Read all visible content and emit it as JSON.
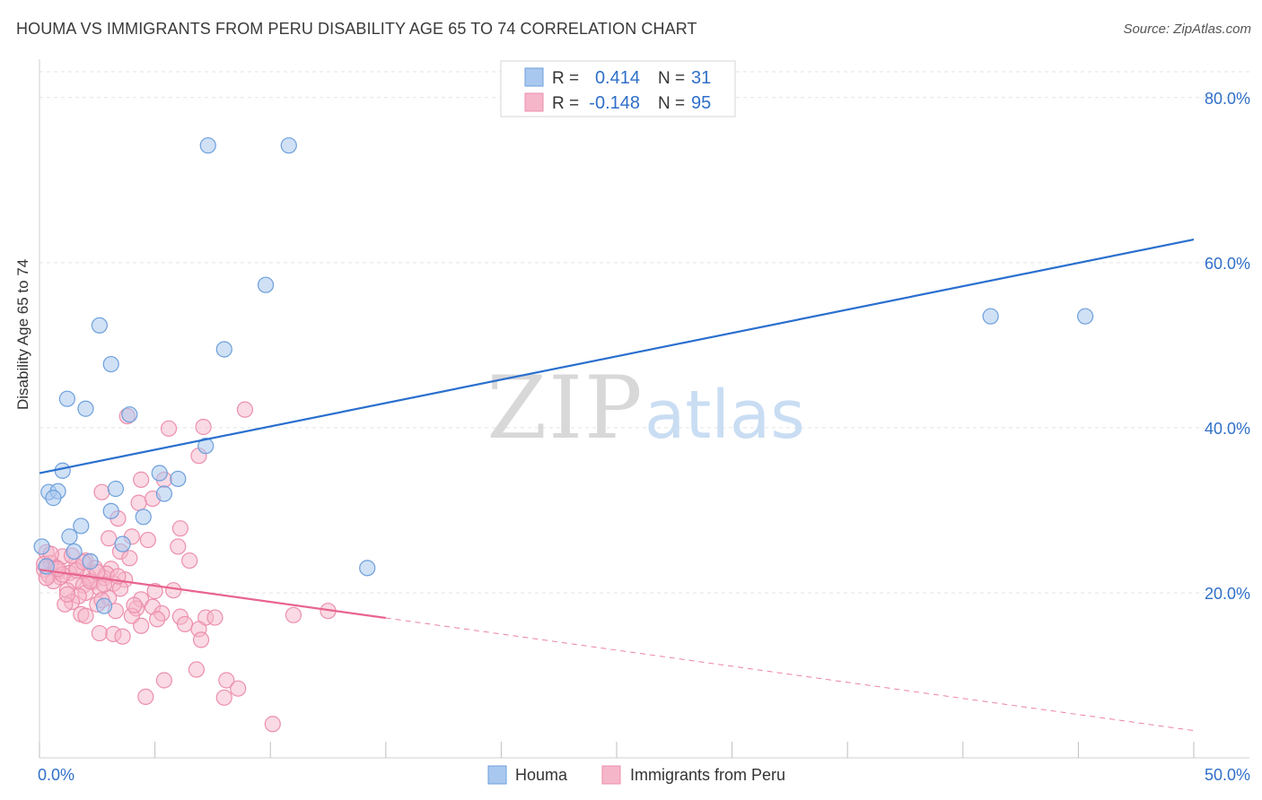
{
  "title": "HOUMA VS IMMIGRANTS FROM PERU DISABILITY AGE 65 TO 74 CORRELATION CHART",
  "source": "Source: ZipAtlas.com",
  "watermark": {
    "zip": "ZIP",
    "atlas": "atlas"
  },
  "chart_data": {
    "type": "scatter",
    "ylabel": "Disability Age 65 to 74",
    "xlim": [
      0,
      50
    ],
    "ylim": [
      0,
      84
    ],
    "x_tick_labels": {
      "min": "0.0%",
      "max": "50.0%"
    },
    "y_ticks": [
      20,
      40,
      60,
      80
    ],
    "y_tick_labels": [
      "20.0%",
      "40.0%",
      "60.0%",
      "80.0%"
    ],
    "legend": {
      "position": "top-center",
      "rows": [
        {
          "r_label": "R =",
          "r_value": "0.414",
          "n_label": "N =",
          "n_value": "31"
        },
        {
          "r_label": "R =",
          "r_value": "-0.148",
          "n_label": "N =",
          "n_value": "95"
        }
      ]
    },
    "bottom_legend": [
      "Houma",
      "Immigrants from Peru"
    ],
    "colors": {
      "houma_fill": "#a9c8ef",
      "houma_stroke": "#6d9fdb",
      "houma_line": "#2a6fce",
      "peru_fill": "#f6b6ca",
      "peru_stroke": "#ec8fac",
      "peru_line": "#e8648f",
      "value_text": "#2f6fc9"
    },
    "series": [
      {
        "name": "Houma",
        "trend": {
          "x": [
            0,
            50
          ],
          "y": [
            34.5,
            62.8
          ],
          "solid_to": 50
        },
        "points": [
          [
            7.3,
            74.2
          ],
          [
            10.8,
            74.2
          ],
          [
            9.8,
            57.3
          ],
          [
            2.6,
            52.4
          ],
          [
            3.1,
            47.7
          ],
          [
            8.0,
            49.5
          ],
          [
            1.2,
            43.5
          ],
          [
            2.0,
            42.3
          ],
          [
            3.9,
            41.6
          ],
          [
            7.2,
            37.8
          ],
          [
            1.0,
            34.8
          ],
          [
            5.2,
            34.5
          ],
          [
            0.4,
            32.2
          ],
          [
            0.8,
            32.3
          ],
          [
            3.3,
            32.6
          ],
          [
            5.4,
            32.0
          ],
          [
            0.6,
            31.5
          ],
          [
            3.1,
            29.9
          ],
          [
            4.5,
            29.2
          ],
          [
            1.8,
            28.1
          ],
          [
            1.3,
            26.8
          ],
          [
            3.6,
            25.9
          ],
          [
            0.1,
            25.6
          ],
          [
            1.5,
            25.0
          ],
          [
            2.2,
            23.8
          ],
          [
            0.3,
            23.2
          ],
          [
            2.8,
            18.4
          ],
          [
            14.2,
            23.0
          ],
          [
            41.2,
            53.5
          ],
          [
            45.3,
            53.5
          ],
          [
            6.0,
            33.8
          ]
        ]
      },
      {
        "name": "Immigrants from Peru",
        "trend": {
          "x": [
            0,
            50
          ],
          "y": [
            22.8,
            3.3
          ],
          "solid_to": 15
        },
        "points": [
          [
            8.9,
            42.2
          ],
          [
            3.8,
            41.4
          ],
          [
            5.6,
            39.9
          ],
          [
            7.1,
            40.1
          ],
          [
            6.9,
            36.6
          ],
          [
            4.4,
            33.7
          ],
          [
            5.4,
            33.7
          ],
          [
            2.7,
            32.2
          ],
          [
            4.9,
            31.4
          ],
          [
            4.3,
            30.9
          ],
          [
            3.4,
            29.0
          ],
          [
            6.1,
            27.8
          ],
          [
            3.0,
            26.6
          ],
          [
            4.0,
            26.8
          ],
          [
            4.7,
            26.4
          ],
          [
            6.0,
            25.6
          ],
          [
            3.5,
            25.0
          ],
          [
            0.3,
            24.9
          ],
          [
            1.0,
            24.4
          ],
          [
            2.0,
            23.9
          ],
          [
            6.5,
            23.9
          ],
          [
            0.5,
            23.6
          ],
          [
            1.6,
            23.2
          ],
          [
            2.4,
            23.0
          ],
          [
            3.1,
            22.9
          ],
          [
            0.2,
            22.8
          ],
          [
            0.8,
            22.6
          ],
          [
            1.3,
            22.4
          ],
          [
            2.1,
            22.0
          ],
          [
            2.8,
            21.8
          ],
          [
            3.7,
            21.6
          ],
          [
            0.4,
            22.1
          ],
          [
            0.9,
            21.9
          ],
          [
            1.5,
            21.5
          ],
          [
            2.3,
            21.3
          ],
          [
            3.2,
            21.1
          ],
          [
            0.6,
            21.4
          ],
          [
            1.9,
            20.9
          ],
          [
            2.6,
            20.6
          ],
          [
            3.5,
            20.5
          ],
          [
            1.2,
            20.3
          ],
          [
            2.0,
            20.0
          ],
          [
            5.0,
            20.2
          ],
          [
            1.7,
            19.6
          ],
          [
            3.0,
            19.4
          ],
          [
            4.4,
            19.2
          ],
          [
            1.4,
            18.9
          ],
          [
            2.5,
            18.6
          ],
          [
            4.9,
            18.3
          ],
          [
            1.1,
            18.6
          ],
          [
            4.2,
            18.1
          ],
          [
            3.3,
            17.8
          ],
          [
            1.8,
            17.4
          ],
          [
            5.3,
            17.5
          ],
          [
            4.0,
            17.2
          ],
          [
            6.1,
            17.1
          ],
          [
            7.2,
            17.0
          ],
          [
            7.6,
            17.0
          ],
          [
            5.1,
            16.8
          ],
          [
            6.3,
            16.2
          ],
          [
            4.4,
            16.0
          ],
          [
            6.9,
            15.6
          ],
          [
            2.6,
            15.1
          ],
          [
            3.2,
            15.0
          ],
          [
            7.0,
            14.3
          ],
          [
            5.4,
            9.4
          ],
          [
            6.8,
            10.7
          ],
          [
            8.1,
            9.4
          ],
          [
            4.6,
            7.4
          ],
          [
            8.6,
            8.4
          ],
          [
            8.0,
            7.3
          ],
          [
            10.1,
            4.1
          ],
          [
            11.0,
            17.3
          ],
          [
            12.5,
            17.8
          ],
          [
            0.2,
            23.5
          ],
          [
            0.7,
            23.1
          ],
          [
            1.0,
            22.2
          ],
          [
            1.6,
            22.7
          ],
          [
            2.2,
            21.4
          ],
          [
            2.9,
            22.3
          ],
          [
            0.3,
            21.8
          ],
          [
            1.4,
            24.5
          ],
          [
            2.5,
            22.5
          ],
          [
            3.9,
            24.2
          ],
          [
            4.1,
            18.5
          ],
          [
            5.8,
            20.3
          ],
          [
            2.0,
            17.2
          ],
          [
            3.6,
            14.7
          ],
          [
            1.2,
            19.8
          ],
          [
            2.8,
            21.0
          ],
          [
            0.5,
            24.7
          ],
          [
            0.8,
            22.9
          ],
          [
            1.9,
            23.7
          ],
          [
            2.7,
            19.1
          ],
          [
            3.4,
            22.0
          ]
        ]
      }
    ]
  }
}
